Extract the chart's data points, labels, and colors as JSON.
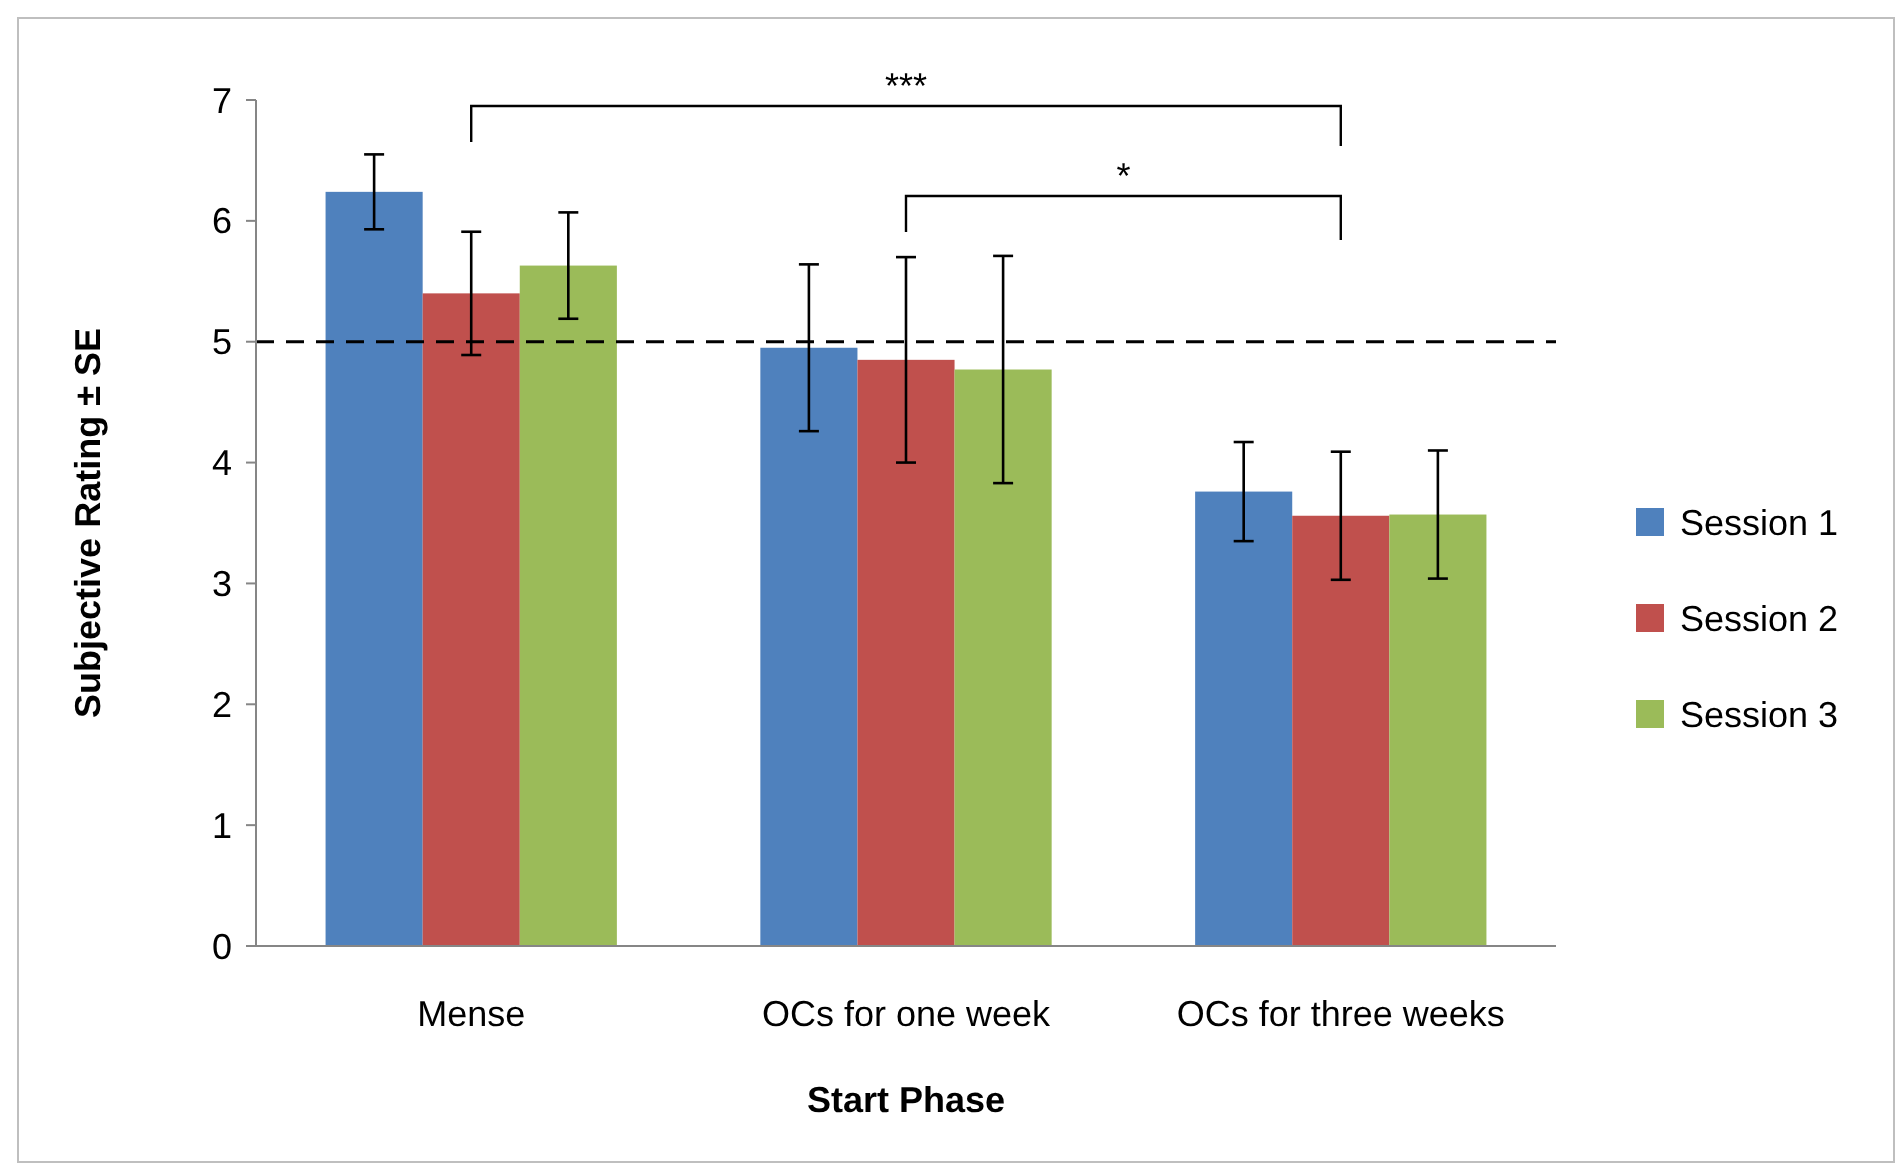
{
  "chart_data": {
    "type": "bar",
    "xlabel": "Start Phase",
    "ylabel": "Subjective Rating ± SE",
    "categories": [
      "Mense",
      "OCs for one week",
      "OCs for three weeks"
    ],
    "series": [
      {
        "name": "Session 1",
        "color": "#4f81bd",
        "values": [
          6.24,
          4.95,
          3.76
        ],
        "errors": [
          0.31,
          0.69,
          0.41
        ]
      },
      {
        "name": "Session 2",
        "color": "#c0504d",
        "values": [
          5.4,
          4.85,
          3.56
        ],
        "errors": [
          0.51,
          0.85,
          0.53
        ]
      },
      {
        "name": "Session 3",
        "color": "#9bbb59",
        "values": [
          5.63,
          4.77,
          3.57
        ],
        "errors": [
          0.44,
          0.94,
          0.53
        ]
      }
    ],
    "ylim": [
      0,
      7
    ],
    "yticks": [
      0,
      1,
      2,
      3,
      4,
      5,
      6,
      7
    ],
    "grid": false,
    "legend": "right",
    "ref_lines": [
      {
        "axis": "y",
        "value": 5,
        "line_style": "dashed",
        "color": "#000000"
      }
    ],
    "annotations": [
      "***",
      "*"
    ]
  }
}
